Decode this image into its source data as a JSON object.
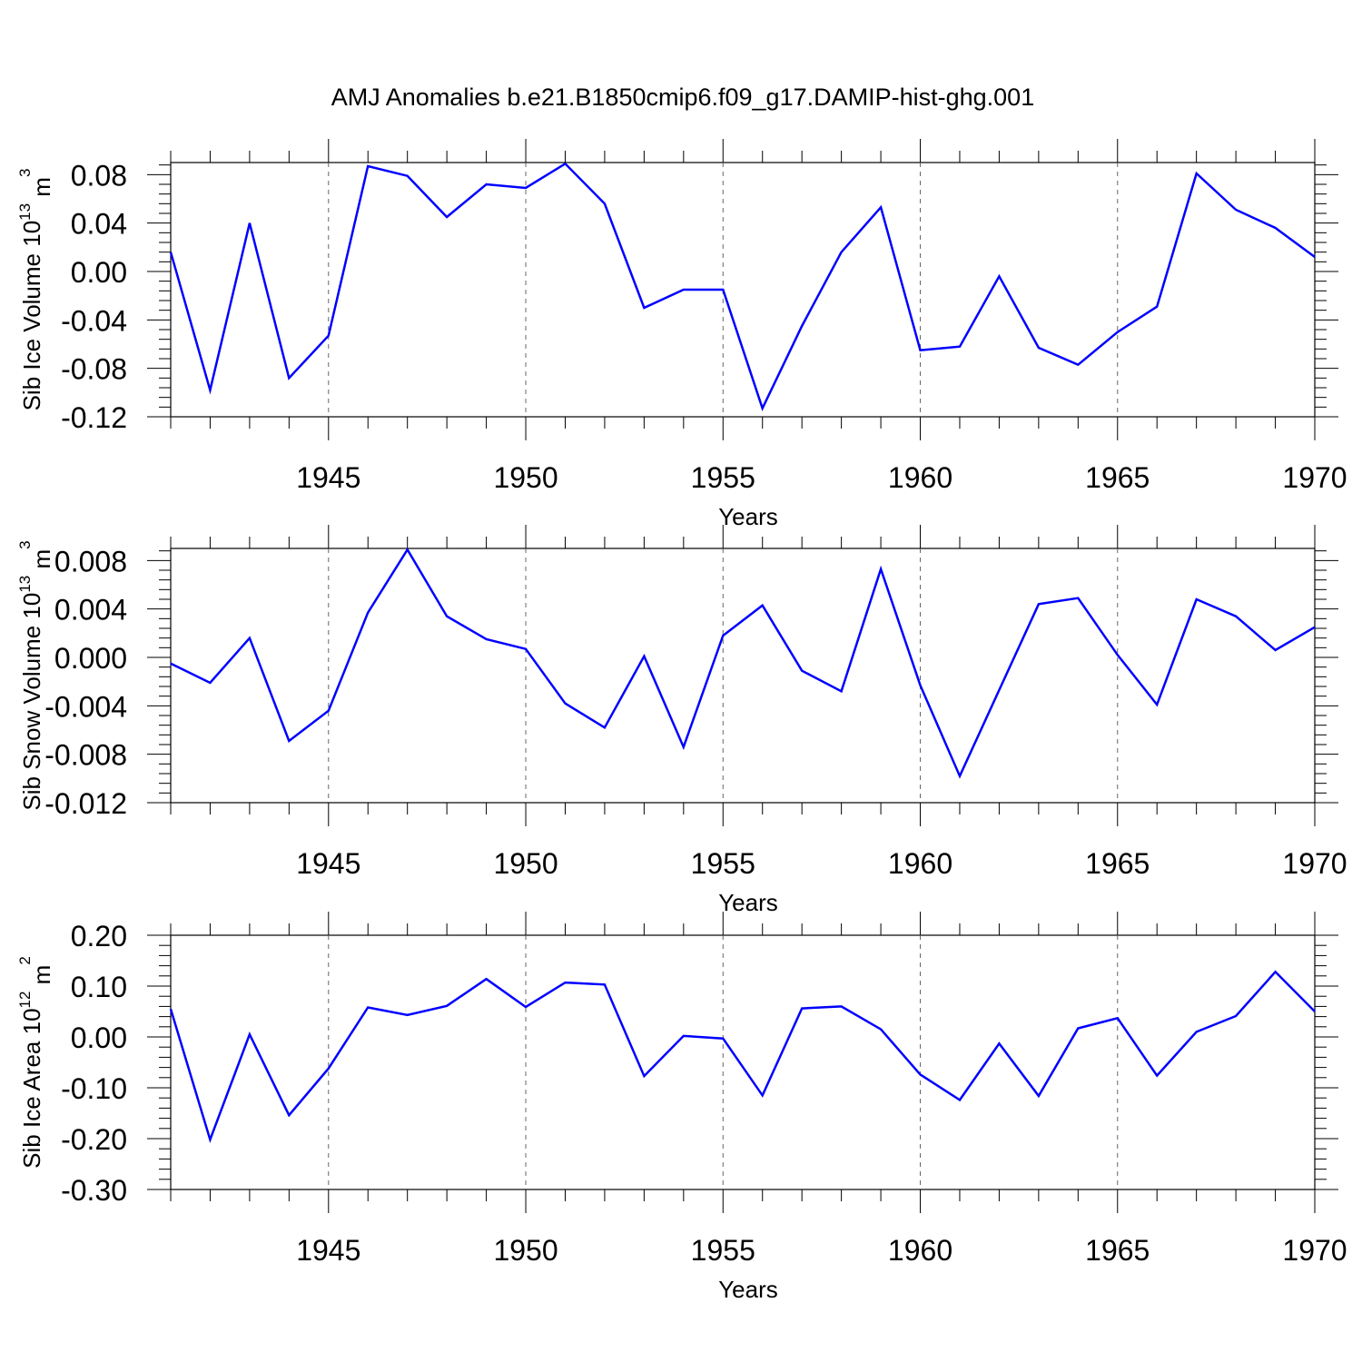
{
  "title": "AMJ Anomalies b.e21.B1850cmip6.f09_g17.DAMIP-hist-ghg.001",
  "series_color": "#0000ff",
  "chart_data": [
    {
      "type": "line",
      "ylabel_main": "Sib Ice Volume 10",
      "ylabel_exp": "13",
      "ylabel_unit": " m",
      "ylabel_unit_exp": "3",
      "xlabel": "Years",
      "xlim": [
        1941,
        1970
      ],
      "ylim": [
        -0.12,
        0.09
      ],
      "yticks": [
        -0.12,
        -0.08,
        -0.04,
        0.0,
        0.04,
        0.08
      ],
      "ytick_labels": [
        "-0.12",
        "-0.08",
        "-0.04",
        "0.00",
        "0.04",
        "0.08"
      ],
      "xticks": [
        1945,
        1950,
        1955,
        1960,
        1965,
        1970
      ],
      "xtick_labels": [
        "1945",
        "1950",
        "1955",
        "1960",
        "1965",
        "1970"
      ],
      "x": [
        1941,
        1942,
        1943,
        1944,
        1945,
        1946,
        1947,
        1948,
        1949,
        1950,
        1951,
        1952,
        1953,
        1954,
        1955,
        1956,
        1957,
        1958,
        1959,
        1960,
        1961,
        1962,
        1963,
        1964,
        1965,
        1966,
        1967,
        1968,
        1969,
        1970
      ],
      "values": [
        0.016,
        -0.098,
        0.04,
        -0.088,
        -0.053,
        0.087,
        0.079,
        0.045,
        0.072,
        0.069,
        0.089,
        0.056,
        -0.03,
        -0.015,
        -0.015,
        -0.113,
        -0.045,
        0.016,
        0.053,
        -0.065,
        -0.062,
        -0.004,
        -0.063,
        -0.077,
        -0.05,
        -0.029,
        0.081,
        0.051,
        0.036,
        0.012
      ]
    },
    {
      "type": "line",
      "ylabel_main": "Sib Snow Volume 10",
      "ylabel_exp": "13",
      "ylabel_unit": " m",
      "ylabel_unit_exp": "3",
      "xlabel": "Years",
      "xlim": [
        1941,
        1970
      ],
      "ylim": [
        -0.012,
        0.009
      ],
      "yticks": [
        -0.012,
        -0.008,
        -0.004,
        0.0,
        0.004,
        0.008
      ],
      "ytick_labels": [
        "-0.012",
        "-0.008",
        "-0.004",
        "0.000",
        "0.004",
        "0.008"
      ],
      "xticks": [
        1945,
        1950,
        1955,
        1960,
        1965,
        1970
      ],
      "xtick_labels": [
        "1945",
        "1950",
        "1955",
        "1960",
        "1965",
        "1970"
      ],
      "x": [
        1941,
        1942,
        1943,
        1944,
        1945,
        1946,
        1947,
        1948,
        1949,
        1950,
        1951,
        1952,
        1953,
        1954,
        1955,
        1956,
        1957,
        1958,
        1959,
        1960,
        1961,
        1962,
        1963,
        1964,
        1965,
        1966,
        1967,
        1968,
        1969,
        1970
      ],
      "values": [
        -0.0005,
        -0.0021,
        0.0016,
        -0.0069,
        -0.0044,
        0.0037,
        0.0089,
        0.0034,
        0.0015,
        0.0007,
        -0.0038,
        -0.0058,
        0.0001,
        -0.0074,
        0.0018,
        0.0043,
        -0.0011,
        -0.0028,
        0.0073,
        -0.0023,
        -0.0098,
        -0.0027,
        0.0044,
        0.0049,
        0.0002,
        -0.0039,
        0.0048,
        0.0034,
        0.0006,
        0.0025
      ]
    },
    {
      "type": "line",
      "ylabel_main": "Sib Ice Area 10",
      "ylabel_exp": "12",
      "ylabel_unit": " m",
      "ylabel_unit_exp": "2",
      "xlabel": "Years",
      "xlim": [
        1941,
        1970
      ],
      "ylim": [
        -0.3,
        0.2
      ],
      "yticks": [
        -0.3,
        -0.2,
        -0.1,
        0.0,
        0.1,
        0.2
      ],
      "ytick_labels": [
        "-0.30",
        "-0.20",
        "-0.10",
        "0.00",
        "0.10",
        "0.20"
      ],
      "xticks": [
        1945,
        1950,
        1955,
        1960,
        1965,
        1970
      ],
      "xtick_labels": [
        "1945",
        "1950",
        "1955",
        "1960",
        "1965",
        "1970"
      ],
      "x": [
        1941,
        1942,
        1943,
        1944,
        1945,
        1946,
        1947,
        1948,
        1949,
        1950,
        1951,
        1952,
        1953,
        1954,
        1955,
        1956,
        1957,
        1958,
        1959,
        1960,
        1961,
        1962,
        1963,
        1964,
        1965,
        1966,
        1967,
        1968,
        1969,
        1970
      ],
      "values": [
        0.055,
        -0.202,
        0.005,
        -0.154,
        -0.062,
        0.058,
        0.043,
        0.061,
        0.114,
        0.059,
        0.107,
        0.103,
        -0.077,
        0.002,
        -0.003,
        -0.115,
        0.056,
        0.06,
        0.015,
        -0.074,
        -0.124,
        -0.013,
        -0.116,
        0.017,
        0.037,
        -0.076,
        0.01,
        0.041,
        0.128,
        0.05
      ]
    }
  ]
}
